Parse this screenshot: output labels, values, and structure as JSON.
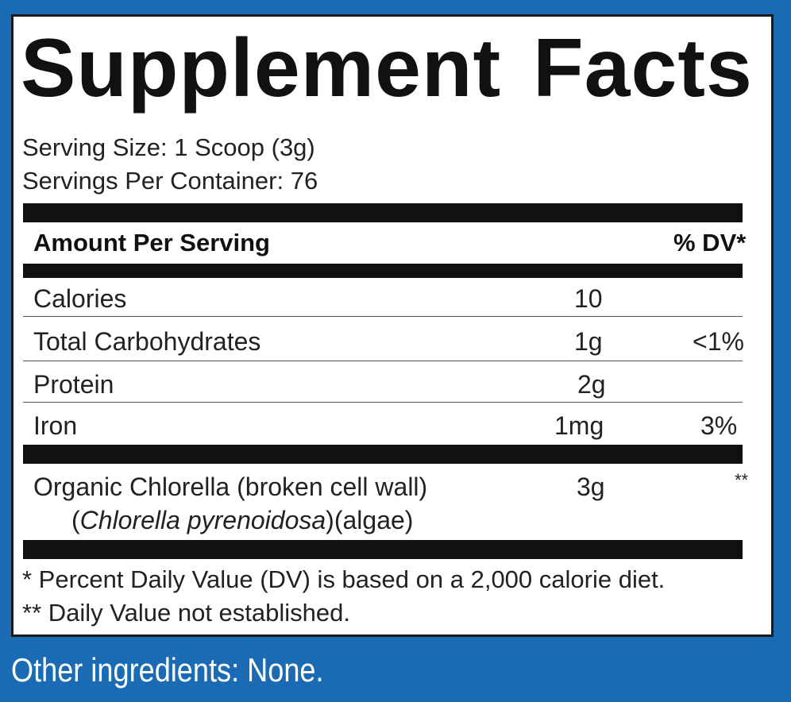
{
  "title_word1": "Supplement",
  "title_word2": "Facts",
  "serving_size": "Serving Size: 1 Scoop (3g)",
  "servings_per_container": "Servings Per Container: 76",
  "header": {
    "amount": "Amount Per Serving",
    "dv": "% DV*"
  },
  "nutrients": [
    {
      "name": "Calories",
      "amount": "10",
      "dv": ""
    },
    {
      "name": "Total Carbohydrates",
      "amount": "1g",
      "dv": "<1%"
    },
    {
      "name": "Protein",
      "amount": "2g",
      "dv": ""
    },
    {
      "name": "Iron",
      "amount": "1mg",
      "dv": "3%"
    }
  ],
  "ingredient": {
    "name_line1": "Organic Chlorella (broken cell wall)",
    "paren_open": "(",
    "latin": "Chlorella pyrenoidosa",
    "name_line2_rest": ")(algae)",
    "amount": "3g",
    "dv": "**"
  },
  "footnote1": "* Percent Daily Value (DV) is based on a 2,000 calorie diet.",
  "footnote2": "** Daily Value not established.",
  "other_ingredients": "Other ingredients: None.",
  "colors": {
    "background_blue": "#1a6ab4",
    "panel": "#ffffff",
    "ink": "#111111"
  }
}
